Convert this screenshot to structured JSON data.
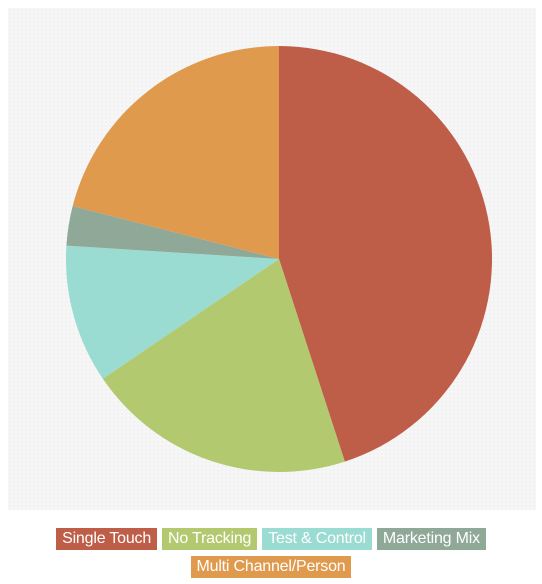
{
  "chart_data": {
    "type": "pie",
    "title": "",
    "categories": [
      "Single Touch",
      "No Tracking",
      "Test & Control",
      "Marketing Mix",
      "Multi Channel/Person"
    ],
    "values": [
      45,
      20.5,
      10.5,
      3,
      21
    ],
    "colors": [
      "#bf5e48",
      "#b3c96f",
      "#9adcd2",
      "#8fa898",
      "#e09a4d"
    ],
    "start_angle_deg": 0,
    "direction": "clockwise",
    "legend_position": "bottom-center",
    "grid": false
  }
}
